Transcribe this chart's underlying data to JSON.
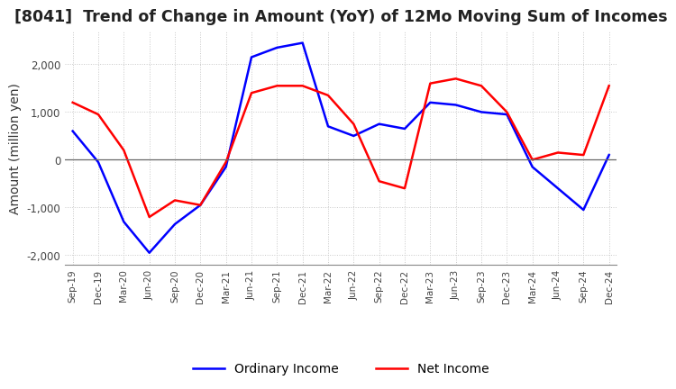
{
  "title": "[8041]  Trend of Change in Amount (YoY) of 12Mo Moving Sum of Incomes",
  "ylabel": "Amount (million yen)",
  "x_labels": [
    "Sep-19",
    "Dec-19",
    "Mar-20",
    "Jun-20",
    "Sep-20",
    "Dec-20",
    "Mar-21",
    "Jun-21",
    "Sep-21",
    "Dec-21",
    "Mar-22",
    "Jun-22",
    "Sep-22",
    "Dec-22",
    "Mar-23",
    "Jun-23",
    "Sep-23",
    "Dec-23",
    "Mar-24",
    "Jun-24",
    "Sep-24",
    "Dec-24"
  ],
  "ordinary_income": [
    600,
    -50,
    -1300,
    -1950,
    -1350,
    -950,
    -150,
    2150,
    2350,
    2450,
    700,
    500,
    750,
    650,
    1200,
    1150,
    1000,
    950,
    -150,
    -600,
    -1050,
    100
  ],
  "net_income": [
    1200,
    950,
    200,
    -1200,
    -850,
    -950,
    -50,
    1400,
    1550,
    1550,
    1350,
    750,
    -450,
    -600,
    1600,
    1700,
    1550,
    1000,
    0,
    150,
    100,
    1550
  ],
  "ordinary_income_color": "#0000ff",
  "net_income_color": "#ff0000",
  "ylim": [
    -2200,
    2700
  ],
  "yticks": [
    -2000,
    -1000,
    0,
    1000,
    2000
  ],
  "background_color": "#ffffff",
  "grid_color": "#c8c8c8",
  "title_fontsize": 12.5,
  "label_fontsize": 10
}
